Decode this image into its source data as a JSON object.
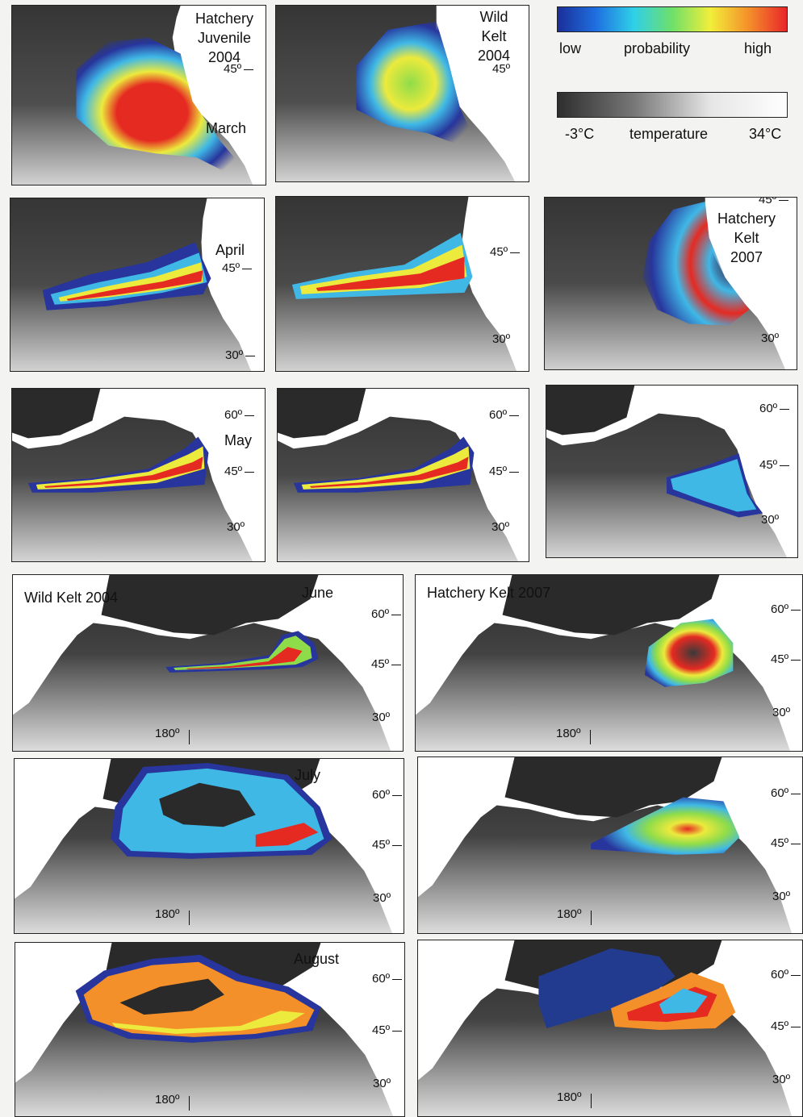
{
  "legend": {
    "probability": {
      "low": "low",
      "mid": "probability",
      "high": "high",
      "colors": [
        "#1a2f9a",
        "#1f6fe0",
        "#2fd0e8",
        "#6ee06a",
        "#f2ee3a",
        "#f4902a",
        "#e8262a"
      ]
    },
    "temperature": {
      "low": "-3°C",
      "mid": "temperature",
      "high": "34°C",
      "colors": [
        "#2e2e2e",
        "#777777",
        "#e6e6e6",
        "#ffffff"
      ]
    }
  },
  "colors": {
    "land": "#ffffff",
    "ocean_dark": "#3a3a3a",
    "ocean_light": "#d9d9d9",
    "prob_low": "#27359c",
    "prob_mid": "#3fb8e6",
    "prob_green": "#8fdc4a",
    "prob_yellow": "#ecea3c",
    "prob_high": "#e52a22"
  },
  "panels": [
    {
      "labels": [
        "Hatchery",
        "Juvenile",
        "2004"
      ],
      "month": "March",
      "lat": [
        "45º"
      ]
    },
    {
      "labels": [
        "Wild",
        "Kelt",
        "2004"
      ],
      "lat": [
        "45º"
      ]
    },
    {
      "month": "April",
      "lat": [
        "45º",
        "30º"
      ]
    },
    {
      "lat": [
        "45º",
        "30º"
      ]
    },
    {
      "labels": [
        "Hatchery",
        "Kelt",
        "2007"
      ],
      "lat": [
        "45º",
        "30º"
      ]
    },
    {
      "month": "May",
      "lat": [
        "60º",
        "45º",
        "30º"
      ]
    },
    {
      "lat": [
        "60º",
        "45º",
        "30º"
      ]
    },
    {
      "lat": [
        "60º",
        "45º",
        "30º"
      ]
    },
    {
      "title": "Wild Kelt 2004",
      "month": "June",
      "lat": [
        "60º",
        "45º",
        "30º"
      ],
      "lon": "180º"
    },
    {
      "title": "Hatchery Kelt 2007",
      "lat": [
        "60º",
        "45º",
        "30º"
      ],
      "lon": "180º"
    },
    {
      "month": "July",
      "lat": [
        "60º",
        "45º",
        "30º"
      ],
      "lon": "180º"
    },
    {
      "lat": [
        "60º",
        "45º",
        "30º"
      ],
      "lon": "180º"
    },
    {
      "month": "August",
      "lat": [
        "60º",
        "45º",
        "30º"
      ],
      "lon": "180º"
    },
    {
      "lat": [
        "60º",
        "45º",
        "30º"
      ],
      "lon": "180º"
    }
  ]
}
